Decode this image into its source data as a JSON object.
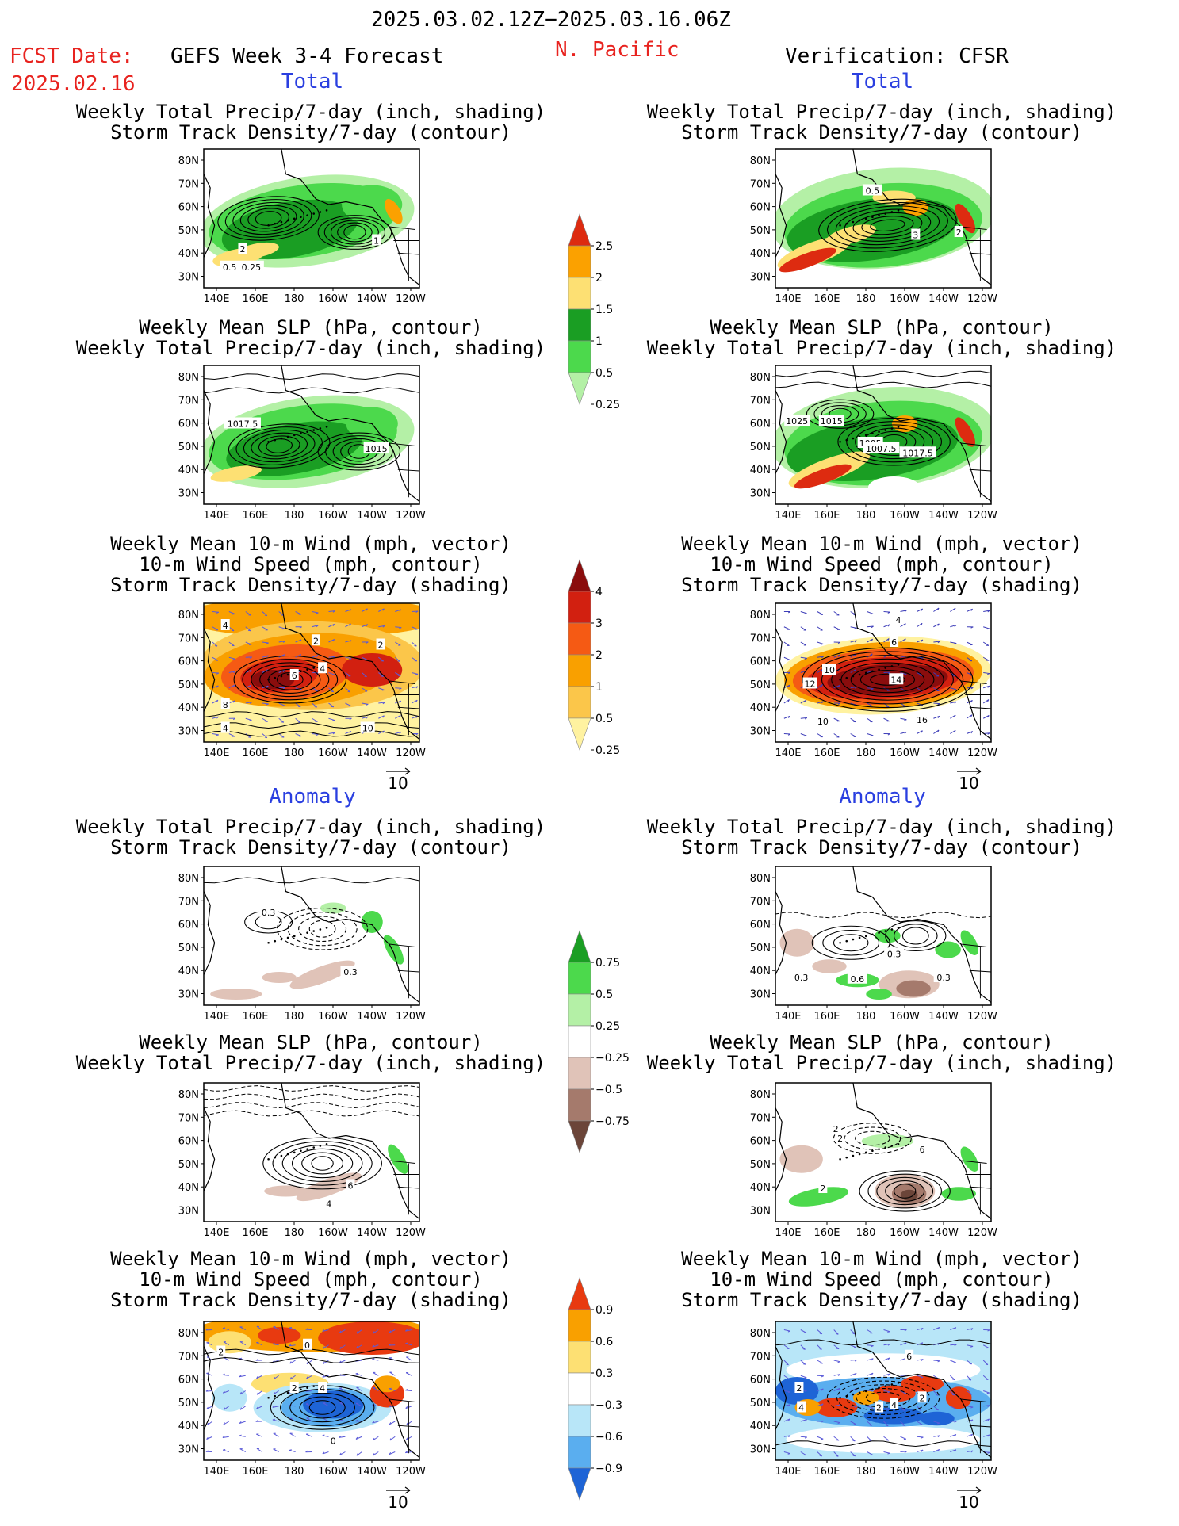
{
  "header": {
    "period": "2025.03.02.12Z−2025.03.16.06Z",
    "fcst_label": "FCST Date:",
    "fcst_date": "2025.02.16",
    "product": "GEFS Week 3-4 Forecast",
    "region": "N. Pacific",
    "verification": "Verification: CFSR"
  },
  "sections": {
    "total": "Total",
    "anomaly": "Anomaly"
  },
  "titles": {
    "precip_track": [
      "Weekly Total Precip/7-day (inch, shading)",
      "Storm Track Density/7-day (contour)"
    ],
    "slp_precip": [
      "Weekly Mean SLP (hPa, contour)",
      "Weekly Total Precip/7-day (inch, shading)"
    ],
    "wind_track": [
      "Weekly Mean 10-m Wind (mph, vector)",
      "10-m Wind Speed (mph, contour)",
      "Storm Track Density/7-day (shading)"
    ]
  },
  "axes": {
    "lat": [
      "80N",
      "70N",
      "60N",
      "50N",
      "40N",
      "30N"
    ],
    "lon": [
      "140E",
      "160E",
      "180",
      "160W",
      "140W",
      "120W"
    ]
  },
  "vector_ref": "10",
  "colorbars": [
    {
      "id": "precip-total",
      "labels": [
        "2.5",
        "2",
        "1.5",
        "1",
        "0.5",
        "0.25"
      ],
      "colors": [
        "#dd2b10",
        "#fba100",
        "#fde073",
        "#1a9e23",
        "#4cd94c",
        "#b4f0a6"
      ]
    },
    {
      "id": "track-total",
      "labels": [
        "4",
        "3",
        "2",
        "1",
        "0.5",
        "0.25"
      ],
      "colors": [
        "#8a0d0d",
        "#d22010",
        "#f55a14",
        "#f9a000",
        "#fbc64a",
        "#fff2a0"
      ]
    },
    {
      "id": "precip-anom",
      "labels": [
        "0.75",
        "0.5",
        "0.25",
        "−0.25",
        "−0.5",
        "−0.75"
      ],
      "colors": [
        "#1a9e23",
        "#4cd94c",
        "#b4f0a6",
        "#ffffff",
        "#e0c3b8",
        "#a57a6c",
        "#6b4539"
      ]
    },
    {
      "id": "track-anom",
      "labels": [
        "0.9",
        "0.6",
        "0.3",
        "−0.3",
        "−0.6",
        "−0.9"
      ],
      "colors": [
        "#e83a10",
        "#f9a000",
        "#fde073",
        "#ffffff",
        "#b8e6f8",
        "#5aaeef",
        "#1e64d6"
      ]
    }
  ],
  "panels": {
    "p1": {
      "labels": [
        "2",
        "0.5",
        "0.25",
        "1"
      ]
    },
    "p2": {
      "labels": [
        "0.5",
        "3",
        "2"
      ]
    },
    "p3": {
      "labels": [
        "1017.5",
        "1015"
      ]
    },
    "p4": {
      "labels": [
        "1025",
        "1015",
        "1005",
        "1007.5",
        "1017.5"
      ]
    },
    "p5": {
      "labels": [
        "4",
        "2",
        "6",
        "4",
        "8",
        "4",
        "2",
        "10"
      ]
    },
    "p6": {
      "labels": [
        "4",
        "6",
        "10",
        "14",
        "12",
        "10",
        "16"
      ]
    },
    "p7": {
      "labels": [
        "0.3",
        "0.3"
      ]
    },
    "p8": {
      "labels": [
        "0.3",
        "0.6",
        "0.3",
        "0.3"
      ]
    },
    "p9": {
      "labels": [
        "6",
        "4"
      ]
    },
    "p10": {
      "labels": [
        "2",
        "2",
        "6",
        "2"
      ]
    },
    "p11": {
      "labels": [
        "2",
        "0",
        "4",
        "2",
        "0"
      ]
    },
    "p12": {
      "labels": [
        "6",
        "2",
        "4",
        "4",
        "2",
        "2"
      ]
    }
  }
}
